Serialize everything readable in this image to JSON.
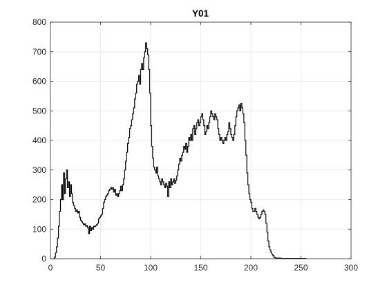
{
  "chart_data": {
    "type": "line",
    "title": "Y01",
    "xlabel": "",
    "ylabel": "",
    "xlim": [
      0,
      300
    ],
    "ylim": [
      0,
      800
    ],
    "xticks": [
      0,
      50,
      100,
      150,
      200,
      250,
      300
    ],
    "yticks": [
      0,
      100,
      200,
      300,
      400,
      500,
      600,
      700,
      800
    ],
    "grid": true,
    "step": true,
    "series": [
      {
        "color": "#000000",
        "points": [
          [
            3,
            0
          ],
          [
            4,
            5
          ],
          [
            5,
            20
          ],
          [
            6,
            40
          ],
          [
            7,
            70
          ],
          [
            8,
            110
          ],
          [
            9,
            160
          ],
          [
            10,
            200
          ],
          [
            11,
            250
          ],
          [
            12,
            200
          ],
          [
            13,
            290
          ],
          [
            14,
            220
          ],
          [
            15,
            270
          ],
          [
            16,
            300
          ],
          [
            17,
            240
          ],
          [
            18,
            260
          ],
          [
            19,
            210
          ],
          [
            20,
            250
          ],
          [
            21,
            220
          ],
          [
            22,
            190
          ],
          [
            23,
            180
          ],
          [
            24,
            170
          ],
          [
            25,
            160
          ],
          [
            26,
            165
          ],
          [
            27,
            155
          ],
          [
            28,
            160
          ],
          [
            29,
            140
          ],
          [
            30,
            130
          ],
          [
            31,
            125
          ],
          [
            32,
            120
          ],
          [
            33,
            115
          ],
          [
            34,
            118
          ],
          [
            35,
            110
          ],
          [
            36,
            112
          ],
          [
            37,
            105
          ],
          [
            38,
            85
          ],
          [
            39,
            110
          ],
          [
            40,
            95
          ],
          [
            41,
            105
          ],
          [
            42,
            100
          ],
          [
            43,
            110
          ],
          [
            44,
            108
          ],
          [
            45,
            112
          ],
          [
            46,
            115
          ],
          [
            47,
            120
          ],
          [
            48,
            135
          ],
          [
            49,
            140
          ],
          [
            50,
            145
          ],
          [
            51,
            150
          ],
          [
            52,
            170
          ],
          [
            53,
            190
          ],
          [
            54,
            200
          ],
          [
            55,
            210
          ],
          [
            56,
            215
          ],
          [
            57,
            220
          ],
          [
            58,
            230
          ],
          [
            59,
            235
          ],
          [
            60,
            240
          ],
          [
            61,
            235
          ],
          [
            62,
            240
          ],
          [
            63,
            225
          ],
          [
            64,
            235
          ],
          [
            65,
            215
          ],
          [
            66,
            220
          ],
          [
            67,
            210
          ],
          [
            68,
            220
          ],
          [
            69,
            230
          ],
          [
            70,
            245
          ],
          [
            71,
            230
          ],
          [
            72,
            250
          ],
          [
            73,
            270
          ],
          [
            74,
            300
          ],
          [
            75,
            330
          ],
          [
            76,
            360
          ],
          [
            77,
            390
          ],
          [
            78,
            410
          ],
          [
            79,
            440
          ],
          [
            80,
            450
          ],
          [
            81,
            470
          ],
          [
            82,
            490
          ],
          [
            83,
            510
          ],
          [
            84,
            540
          ],
          [
            85,
            560
          ],
          [
            86,
            590
          ],
          [
            87,
            600
          ],
          [
            88,
            620
          ],
          [
            89,
            590
          ],
          [
            90,
            640
          ],
          [
            91,
            660
          ],
          [
            92,
            640
          ],
          [
            93,
            680
          ],
          [
            94,
            700
          ],
          [
            95,
            730
          ],
          [
            96,
            710
          ],
          [
            97,
            690
          ],
          [
            98,
            640
          ],
          [
            99,
            560
          ],
          [
            100,
            450
          ],
          [
            101,
            380
          ],
          [
            102,
            340
          ],
          [
            103,
            310
          ],
          [
            104,
            300
          ],
          [
            105,
            290
          ],
          [
            106,
            310
          ],
          [
            107,
            280
          ],
          [
            108,
            270
          ],
          [
            109,
            260
          ],
          [
            110,
            250
          ],
          [
            111,
            270
          ],
          [
            112,
            260
          ],
          [
            113,
            250
          ],
          [
            114,
            240
          ],
          [
            115,
            255
          ],
          [
            116,
            245
          ],
          [
            117,
            210
          ],
          [
            118,
            260
          ],
          [
            119,
            240
          ],
          [
            120,
            270
          ],
          [
            121,
            250
          ],
          [
            122,
            260
          ],
          [
            123,
            270
          ],
          [
            124,
            255
          ],
          [
            125,
            265
          ],
          [
            126,
            280
          ],
          [
            127,
            300
          ],
          [
            128,
            320
          ],
          [
            129,
            340
          ],
          [
            130,
            330
          ],
          [
            131,
            350
          ],
          [
            132,
            360
          ],
          [
            133,
            380
          ],
          [
            134,
            370
          ],
          [
            135,
            390
          ],
          [
            136,
            360
          ],
          [
            137,
            380
          ],
          [
            138,
            410
          ],
          [
            139,
            400
          ],
          [
            140,
            420
          ],
          [
            141,
            400
          ],
          [
            142,
            440
          ],
          [
            143,
            450
          ],
          [
            144,
            420
          ],
          [
            145,
            440
          ],
          [
            146,
            460
          ],
          [
            147,
            470
          ],
          [
            148,
            450
          ],
          [
            149,
            460
          ],
          [
            150,
            480
          ],
          [
            151,
            490
          ],
          [
            152,
            470
          ],
          [
            153,
            450
          ],
          [
            154,
            420
          ],
          [
            155,
            430
          ],
          [
            156,
            450
          ],
          [
            157,
            440
          ],
          [
            158,
            460
          ],
          [
            159,
            480
          ],
          [
            160,
            500
          ],
          [
            161,
            490
          ],
          [
            162,
            480
          ],
          [
            163,
            470
          ],
          [
            164,
            490
          ],
          [
            165,
            480
          ],
          [
            166,
            470
          ],
          [
            167,
            440
          ],
          [
            168,
            420
          ],
          [
            169,
            400
          ],
          [
            170,
            410
          ],
          [
            171,
            400
          ],
          [
            172,
            390
          ],
          [
            173,
            400
          ],
          [
            174,
            410
          ],
          [
            175,
            400
          ],
          [
            176,
            420
          ],
          [
            177,
            430
          ],
          [
            178,
            460
          ],
          [
            179,
            440
          ],
          [
            180,
            420
          ],
          [
            181,
            410
          ],
          [
            182,
            400
          ],
          [
            183,
            420
          ],
          [
            184,
            450
          ],
          [
            185,
            480
          ],
          [
            186,
            500
          ],
          [
            187,
            510
          ],
          [
            188,
            520
          ],
          [
            189,
            500
          ],
          [
            190,
            525
          ],
          [
            191,
            510
          ],
          [
            192,
            490
          ],
          [
            193,
            460
          ],
          [
            194,
            400
          ],
          [
            195,
            350
          ],
          [
            196,
            290
          ],
          [
            197,
            250
          ],
          [
            198,
            220
          ],
          [
            199,
            200
          ],
          [
            200,
            190
          ],
          [
            201,
            170
          ],
          [
            202,
            160
          ],
          [
            203,
            160
          ],
          [
            204,
            170
          ],
          [
            205,
            160
          ],
          [
            206,
            150
          ],
          [
            207,
            140
          ],
          [
            208,
            135
          ],
          [
            209,
            140
          ],
          [
            210,
            150
          ],
          [
            211,
            160
          ],
          [
            212,
            165
          ],
          [
            213,
            160
          ],
          [
            214,
            150
          ],
          [
            215,
            120
          ],
          [
            216,
            90
          ],
          [
            217,
            60
          ],
          [
            218,
            40
          ],
          [
            219,
            30
          ],
          [
            220,
            20
          ],
          [
            221,
            15
          ],
          [
            222,
            10
          ],
          [
            223,
            5
          ],
          [
            224,
            3
          ],
          [
            225,
            2
          ],
          [
            230,
            1
          ],
          [
            240,
            1
          ],
          [
            250,
            1
          ],
          [
            255,
            0
          ]
        ]
      }
    ]
  }
}
